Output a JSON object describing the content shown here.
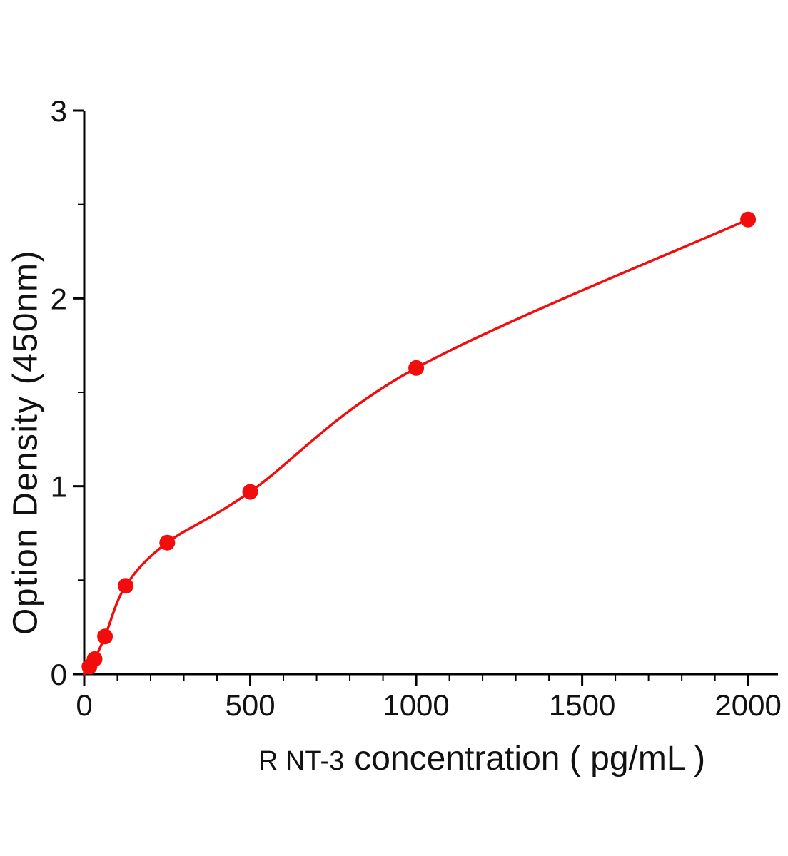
{
  "chart_data": {
    "type": "scatter",
    "title": "",
    "xlabel_prefix": "R NT-3",
    "xlabel_main": "concentration ( pg/mL )",
    "xlabel": "R NT-3 concentration ( pg/mL )",
    "ylabel": "Option Density (450nm)",
    "x": [
      15.6,
      31.2,
      62.5,
      125,
      250,
      500,
      1000,
      2000
    ],
    "y": [
      0.04,
      0.08,
      0.2,
      0.47,
      0.7,
      0.97,
      1.63,
      2.42
    ],
    "xlim": [
      0,
      2090
    ],
    "ylim": [
      0,
      3
    ],
    "x_major_ticks": [
      0,
      500,
      1000,
      1500,
      2000
    ],
    "x_minor_step": 100,
    "y_major_ticks": [
      0,
      1,
      2,
      3
    ],
    "y_minor_step": 0.5,
    "grid": false,
    "legend": "none",
    "fit_curve_from_origin": true,
    "axis_color": "#000000",
    "point_color": "#f20c0c",
    "line_color": "#f20c0c",
    "background_color": "#ffffff"
  }
}
